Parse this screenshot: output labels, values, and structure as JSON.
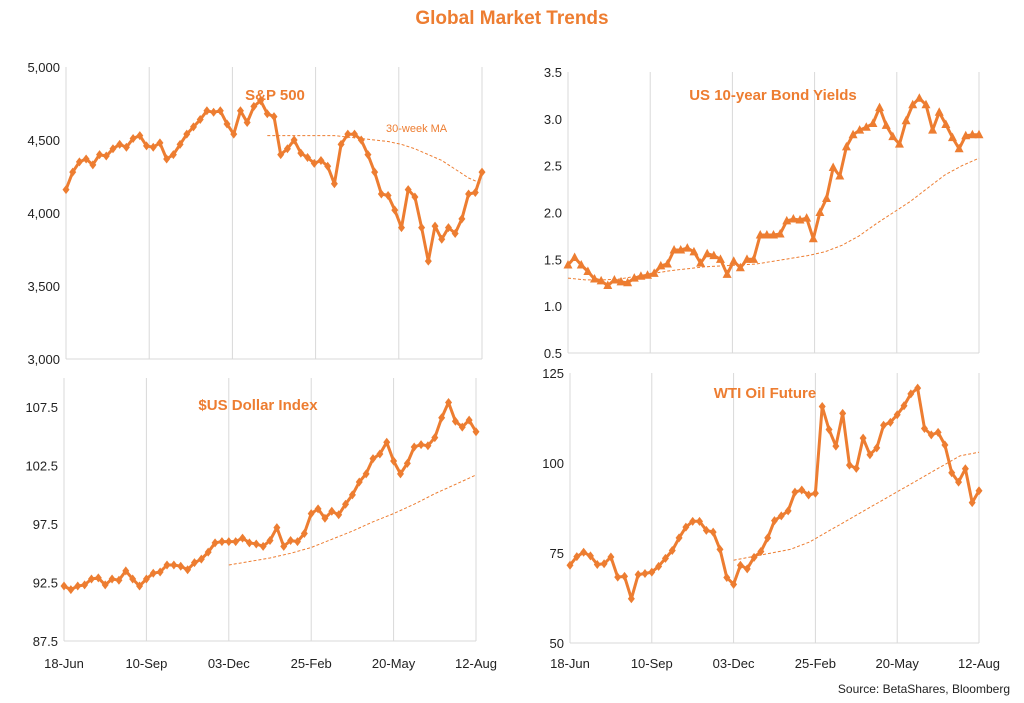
{
  "title": "Global Market Trends",
  "source": "Source: BetaShares, Bloomberg",
  "colors": {
    "series": "#ED7D31",
    "title": "#ED7D31",
    "grid": "#d9d9d9"
  },
  "chart_data": [
    {
      "id": "sp500",
      "type": "line",
      "title": "S&P 500",
      "marker": "diamond",
      "ylim": [
        3000,
        5000
      ],
      "yticks": [
        "3,000",
        "3,500",
        "4,000",
        "4,500",
        "5,000"
      ],
      "ytick_values": [
        3000,
        3500,
        4000,
        4500,
        5000
      ],
      "xticks": [
        "18-Jun",
        "10-Sep",
        "03-Dec",
        "25-Feb",
        "20-May",
        "12-Aug"
      ],
      "annotation": "30-week MA",
      "values": [
        4160,
        4280,
        4350,
        4370,
        4330,
        4400,
        4390,
        4440,
        4470,
        4450,
        4510,
        4530,
        4460,
        4450,
        4480,
        4370,
        4400,
        4470,
        4540,
        4590,
        4640,
        4700,
        4690,
        4700,
        4610,
        4540,
        4700,
        4620,
        4730,
        4770,
        4680,
        4660,
        4400,
        4440,
        4500,
        4410,
        4380,
        4340,
        4360,
        4320,
        4200,
        4470,
        4540,
        4540,
        4500,
        4400,
        4280,
        4130,
        4120,
        4020,
        3900,
        4160,
        4110,
        3900,
        3670,
        3910,
        3820,
        3900,
        3860,
        3960,
        4130,
        4140,
        4280
      ],
      "ma_start_index": 30,
      "ma_values": [
        4530,
        4530,
        4530,
        4530,
        4530,
        4530,
        4520,
        4510,
        4500,
        4490,
        4470,
        4440,
        4400,
        4360,
        4300,
        4240,
        4200
      ]
    },
    {
      "id": "bonds",
      "type": "line",
      "title": "US 10-year Bond Yields",
      "marker": "triangle",
      "ylim": [
        0.5,
        3.5
      ],
      "yticks": [
        "0.5",
        "1.0",
        "1.5",
        "2.0",
        "2.5",
        "3.0",
        "3.5"
      ],
      "ytick_values": [
        0.5,
        1.0,
        1.5,
        2.0,
        2.5,
        3.0,
        3.5
      ],
      "xticks": [
        "18-Jun",
        "10-Sep",
        "03-Dec",
        "25-Feb",
        "20-May",
        "12-Aug"
      ],
      "values": [
        1.44,
        1.52,
        1.44,
        1.37,
        1.29,
        1.27,
        1.22,
        1.28,
        1.26,
        1.25,
        1.3,
        1.32,
        1.33,
        1.35,
        1.43,
        1.45,
        1.6,
        1.6,
        1.62,
        1.58,
        1.46,
        1.56,
        1.54,
        1.5,
        1.34,
        1.48,
        1.41,
        1.5,
        1.5,
        1.76,
        1.76,
        1.76,
        1.77,
        1.91,
        1.93,
        1.92,
        1.94,
        1.72,
        2.0,
        2.15,
        2.48,
        2.39,
        2.7,
        2.83,
        2.88,
        2.91,
        2.95,
        3.12,
        2.93,
        2.81,
        2.73,
        2.98,
        3.15,
        3.22,
        3.15,
        2.88,
        3.07,
        2.94,
        2.8,
        2.68,
        2.82,
        2.83,
        2.83
      ],
      "ma_start_index": 0,
      "ma_values": [
        1.3,
        1.28,
        1.28,
        1.29,
        1.32,
        1.35,
        1.38,
        1.4,
        1.42,
        1.43,
        1.44,
        1.45,
        1.48,
        1.51,
        1.54,
        1.58,
        1.65,
        1.75,
        1.88,
        2.0,
        2.12,
        2.26,
        2.4,
        2.5,
        2.58
      ]
    },
    {
      "id": "usd",
      "type": "line",
      "title": "$US Dollar Index",
      "marker": "diamond",
      "ylim": [
        87.5,
        110
      ],
      "yticks": [
        "87.5",
        "92.5",
        "97.5",
        "102.5",
        "107.5"
      ],
      "ytick_values": [
        87.5,
        92.5,
        97.5,
        102.5,
        107.5
      ],
      "xticks": [
        "18-Jun",
        "10-Sep",
        "03-Dec",
        "25-Feb",
        "20-May",
        "12-Aug"
      ],
      "values": [
        92.2,
        91.9,
        92.2,
        92.3,
        92.8,
        92.9,
        92.3,
        92.8,
        92.7,
        93.5,
        92.8,
        92.2,
        92.8,
        93.3,
        93.4,
        94.0,
        94.0,
        93.9,
        93.6,
        94.2,
        94.5,
        95.1,
        95.9,
        96.0,
        96.0,
        96.0,
        96.3,
        95.9,
        95.8,
        95.6,
        96.1,
        97.2,
        95.6,
        96.1,
        96.0,
        96.7,
        98.4,
        98.8,
        98.0,
        98.6,
        98.3,
        99.2,
        100.0,
        101.1,
        101.8,
        103.1,
        103.5,
        104.5,
        102.9,
        101.8,
        102.7,
        104.1,
        104.3,
        104.2,
        104.9,
        106.6,
        107.9,
        106.3,
        105.8,
        106.4,
        105.4
      ],
      "ma_start_index": 24,
      "ma_values": [
        94.0,
        94.3,
        94.6,
        95.0,
        95.5,
        96.2,
        96.9,
        97.7,
        98.4,
        99.2,
        100.1,
        100.9,
        101.7
      ]
    },
    {
      "id": "oil",
      "type": "line",
      "title": "WTI Oil Future",
      "marker": "diamond",
      "ylim": [
        50,
        125
      ],
      "yticks": [
        "50",
        "75",
        "100",
        "125"
      ],
      "ytick_values": [
        50,
        75,
        100,
        125
      ],
      "xticks": [
        "18-Jun",
        "10-Sep",
        "03-Dec",
        "25-Feb",
        "20-May",
        "12-Aug"
      ],
      "values": [
        71.6,
        74.0,
        75.2,
        74.2,
        71.8,
        72.0,
        73.9,
        68.3,
        68.5,
        62.3,
        69.0,
        69.3,
        69.7,
        71.3,
        73.5,
        75.7,
        79.2,
        82.2,
        83.8,
        83.8,
        81.3,
        80.8,
        76.0,
        68.2,
        66.3,
        71.6,
        70.6,
        73.8,
        75.4,
        79.2,
        84.0,
        85.3,
        86.7,
        91.9,
        92.5,
        91.1,
        91.6,
        115.7,
        109.3,
        104.7,
        113.8,
        99.4,
        98.5,
        106.9,
        102.3,
        104.2,
        110.5,
        111.3,
        113.4,
        115.9,
        119.2,
        120.8,
        109.6,
        107.8,
        108.5,
        105.0,
        97.3,
        94.7,
        98.4,
        89.0,
        92.3
      ],
      "ma_start_index": 24,
      "ma_values": [
        73.0,
        74.0,
        75.0,
        76.0,
        78.0,
        81.0,
        84.0,
        87.0,
        90.0,
        93.0,
        96.0,
        99.0,
        102.0,
        103.0
      ]
    }
  ]
}
